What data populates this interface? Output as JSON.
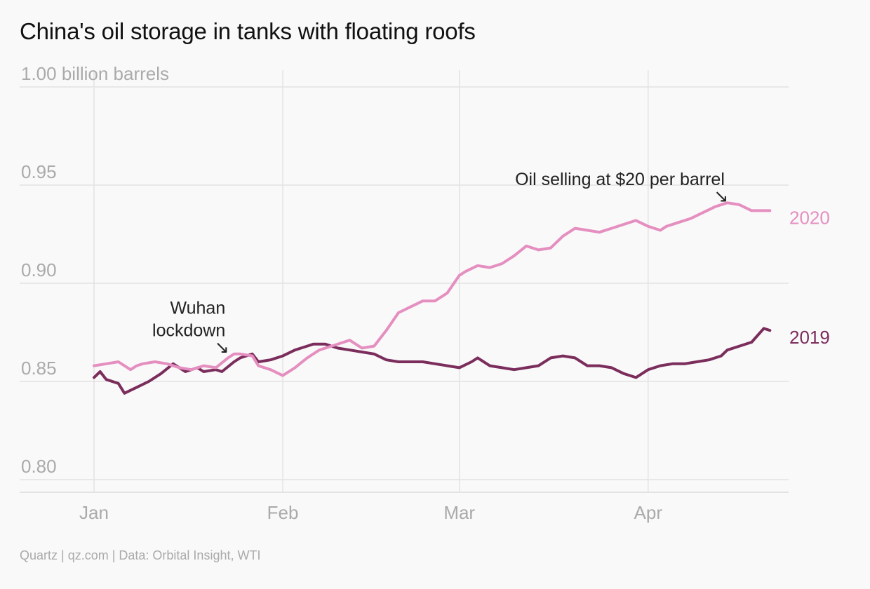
{
  "title": "China's oil storage in tanks with floating roofs",
  "source": "Quartz | qz.com | Data: Orbital Insight, WTI",
  "chart_data": {
    "type": "line",
    "title": "China's oil storage in tanks with floating roofs",
    "ylabel": "billion barrels",
    "ylim": [
      0.8,
      1.0
    ],
    "yticks": [
      {
        "value": 1.0,
        "label": "1.00 billion barrels"
      },
      {
        "value": 0.95,
        "label": "0.95"
      },
      {
        "value": 0.9,
        "label": "0.90"
      },
      {
        "value": 0.85,
        "label": "0.85"
      },
      {
        "value": 0.8,
        "label": "0.80"
      }
    ],
    "xlim": [
      "2020-01-01",
      "2020-04-22"
    ],
    "xticks": [
      {
        "date": "2020-01-01",
        "label": "Jan"
      },
      {
        "date": "2020-02-01",
        "label": "Feb"
      },
      {
        "date": "2020-03-01",
        "label": "Mar"
      },
      {
        "date": "2020-04-01",
        "label": "Apr"
      }
    ],
    "grid": true,
    "series": [
      {
        "name": "2019",
        "color": "#7b2d5c",
        "x": [
          "2020-01-01",
          "2020-01-02",
          "2020-01-03",
          "2020-01-05",
          "2020-01-06",
          "2020-01-08",
          "2020-01-10",
          "2020-01-12",
          "2020-01-14",
          "2020-01-16",
          "2020-01-18",
          "2020-01-19",
          "2020-01-21",
          "2020-01-22",
          "2020-01-24",
          "2020-01-25",
          "2020-01-27",
          "2020-01-28",
          "2020-01-30",
          "2020-02-01",
          "2020-02-03",
          "2020-02-05",
          "2020-02-06",
          "2020-02-08",
          "2020-02-10",
          "2020-02-12",
          "2020-02-14",
          "2020-02-16",
          "2020-02-18",
          "2020-02-20",
          "2020-02-22",
          "2020-02-24",
          "2020-02-26",
          "2020-02-28",
          "2020-03-01",
          "2020-03-03",
          "2020-03-04",
          "2020-03-06",
          "2020-03-08",
          "2020-03-10",
          "2020-03-12",
          "2020-03-14",
          "2020-03-16",
          "2020-03-18",
          "2020-03-20",
          "2020-03-22",
          "2020-03-24",
          "2020-03-26",
          "2020-03-28",
          "2020-03-30",
          "2020-04-01",
          "2020-04-03",
          "2020-04-05",
          "2020-04-07",
          "2020-04-09",
          "2020-04-11",
          "2020-04-13",
          "2020-04-14",
          "2020-04-16",
          "2020-04-18",
          "2020-04-20",
          "2020-04-21"
        ],
        "values": [
          0.852,
          0.855,
          0.851,
          0.849,
          0.844,
          0.847,
          0.85,
          0.854,
          0.859,
          0.855,
          0.857,
          0.855,
          0.856,
          0.855,
          0.86,
          0.862,
          0.864,
          0.86,
          0.861,
          0.863,
          0.866,
          0.868,
          0.869,
          0.869,
          0.867,
          0.866,
          0.865,
          0.864,
          0.861,
          0.86,
          0.86,
          0.86,
          0.859,
          0.858,
          0.857,
          0.86,
          0.862,
          0.858,
          0.857,
          0.856,
          0.857,
          0.858,
          0.862,
          0.863,
          0.862,
          0.858,
          0.858,
          0.857,
          0.854,
          0.852,
          0.856,
          0.858,
          0.859,
          0.859,
          0.86,
          0.861,
          0.863,
          0.866,
          0.868,
          0.87,
          0.877,
          0.876
        ]
      },
      {
        "name": "2020",
        "color": "#e58fc0",
        "x": [
          "2020-01-01",
          "2020-01-03",
          "2020-01-05",
          "2020-01-07",
          "2020-01-08",
          "2020-01-09",
          "2020-01-11",
          "2020-01-13",
          "2020-01-15",
          "2020-01-17",
          "2020-01-19",
          "2020-01-21",
          "2020-01-23",
          "2020-01-24",
          "2020-01-25",
          "2020-01-27",
          "2020-01-28",
          "2020-01-30",
          "2020-02-01",
          "2020-02-03",
          "2020-02-05",
          "2020-02-07",
          "2020-02-09",
          "2020-02-11",
          "2020-02-12",
          "2020-02-14",
          "2020-02-16",
          "2020-02-18",
          "2020-02-20",
          "2020-02-22",
          "2020-02-24",
          "2020-02-26",
          "2020-02-28",
          "2020-03-01",
          "2020-03-02",
          "2020-03-04",
          "2020-03-06",
          "2020-03-08",
          "2020-03-10",
          "2020-03-12",
          "2020-03-14",
          "2020-03-16",
          "2020-03-18",
          "2020-03-20",
          "2020-03-22",
          "2020-03-24",
          "2020-03-26",
          "2020-03-28",
          "2020-03-30",
          "2020-04-01",
          "2020-04-03",
          "2020-04-04",
          "2020-04-06",
          "2020-04-08",
          "2020-04-10",
          "2020-04-12",
          "2020-04-14",
          "2020-04-16",
          "2020-04-18",
          "2020-04-20",
          "2020-04-21"
        ],
        "values": [
          0.858,
          0.859,
          0.86,
          0.856,
          0.858,
          0.859,
          0.86,
          0.859,
          0.857,
          0.856,
          0.858,
          0.857,
          0.862,
          0.864,
          0.864,
          0.863,
          0.858,
          0.856,
          0.853,
          0.857,
          0.862,
          0.866,
          0.868,
          0.87,
          0.871,
          0.867,
          0.868,
          0.876,
          0.885,
          0.888,
          0.891,
          0.891,
          0.895,
          0.904,
          0.906,
          0.909,
          0.908,
          0.91,
          0.914,
          0.919,
          0.917,
          0.918,
          0.924,
          0.928,
          0.927,
          0.926,
          0.928,
          0.93,
          0.932,
          0.929,
          0.927,
          0.929,
          0.931,
          0.933,
          0.936,
          0.939,
          0.941,
          0.94,
          0.937,
          0.937,
          0.937
        ]
      }
    ],
    "annotations": [
      {
        "lines": [
          "Wuhan",
          "lockdown"
        ],
        "arrow": "↘",
        "date": "2020-01-22",
        "value": 0.863
      },
      {
        "lines": [
          "Oil selling at $20 per barrel"
        ],
        "arrow": "↘",
        "date": "2020-04-13",
        "value": 0.94
      }
    ]
  }
}
